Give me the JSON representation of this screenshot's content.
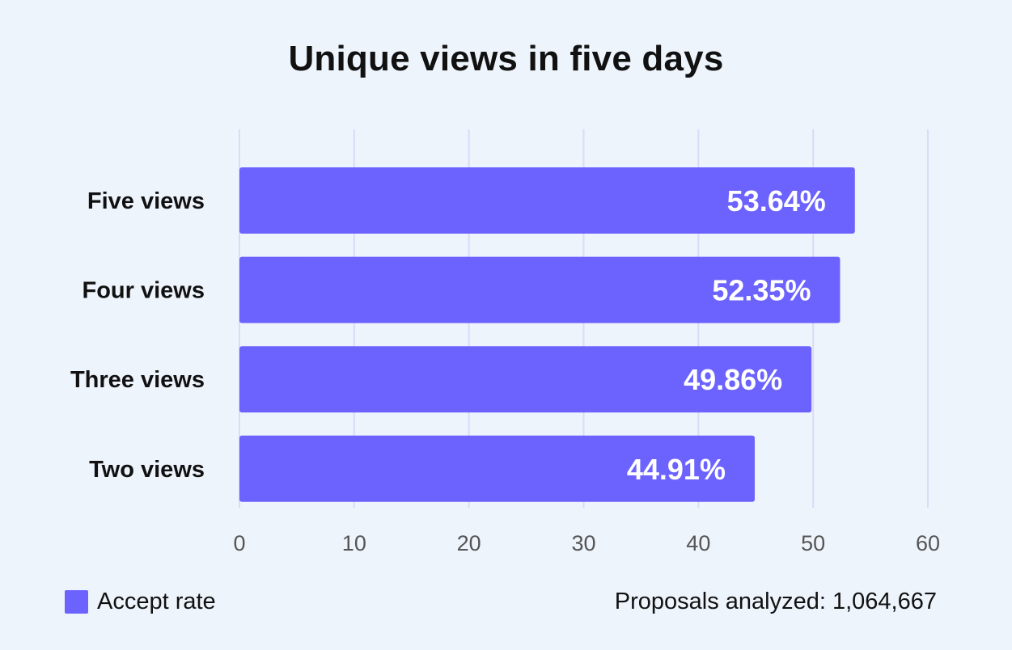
{
  "chart_data": {
    "type": "bar",
    "orientation": "horizontal",
    "title": "Unique views in five days",
    "categories": [
      "Five views",
      "Four views",
      "Three views",
      "Two views"
    ],
    "series": [
      {
        "name": "Accept rate",
        "values": [
          53.64,
          52.35,
          49.86,
          44.91
        ],
        "labels": [
          "53.64%",
          "52.35%",
          "49.86%",
          "44.91%"
        ]
      }
    ],
    "xlim": [
      0,
      60
    ],
    "xticks": [
      "0",
      "10",
      "20",
      "30",
      "40",
      "50",
      "60"
    ],
    "grid": "vertical",
    "legend_position": "bottom-left"
  },
  "footer": {
    "note": "Proposals analyzed: 1,064,667"
  },
  "colors": {
    "background": "#EEF4FC",
    "bar": "#6C63FF",
    "gridline": "#DCDAF7",
    "bar_label": "#FFFFFF",
    "tick_label": "#555555",
    "text": "#111111"
  }
}
